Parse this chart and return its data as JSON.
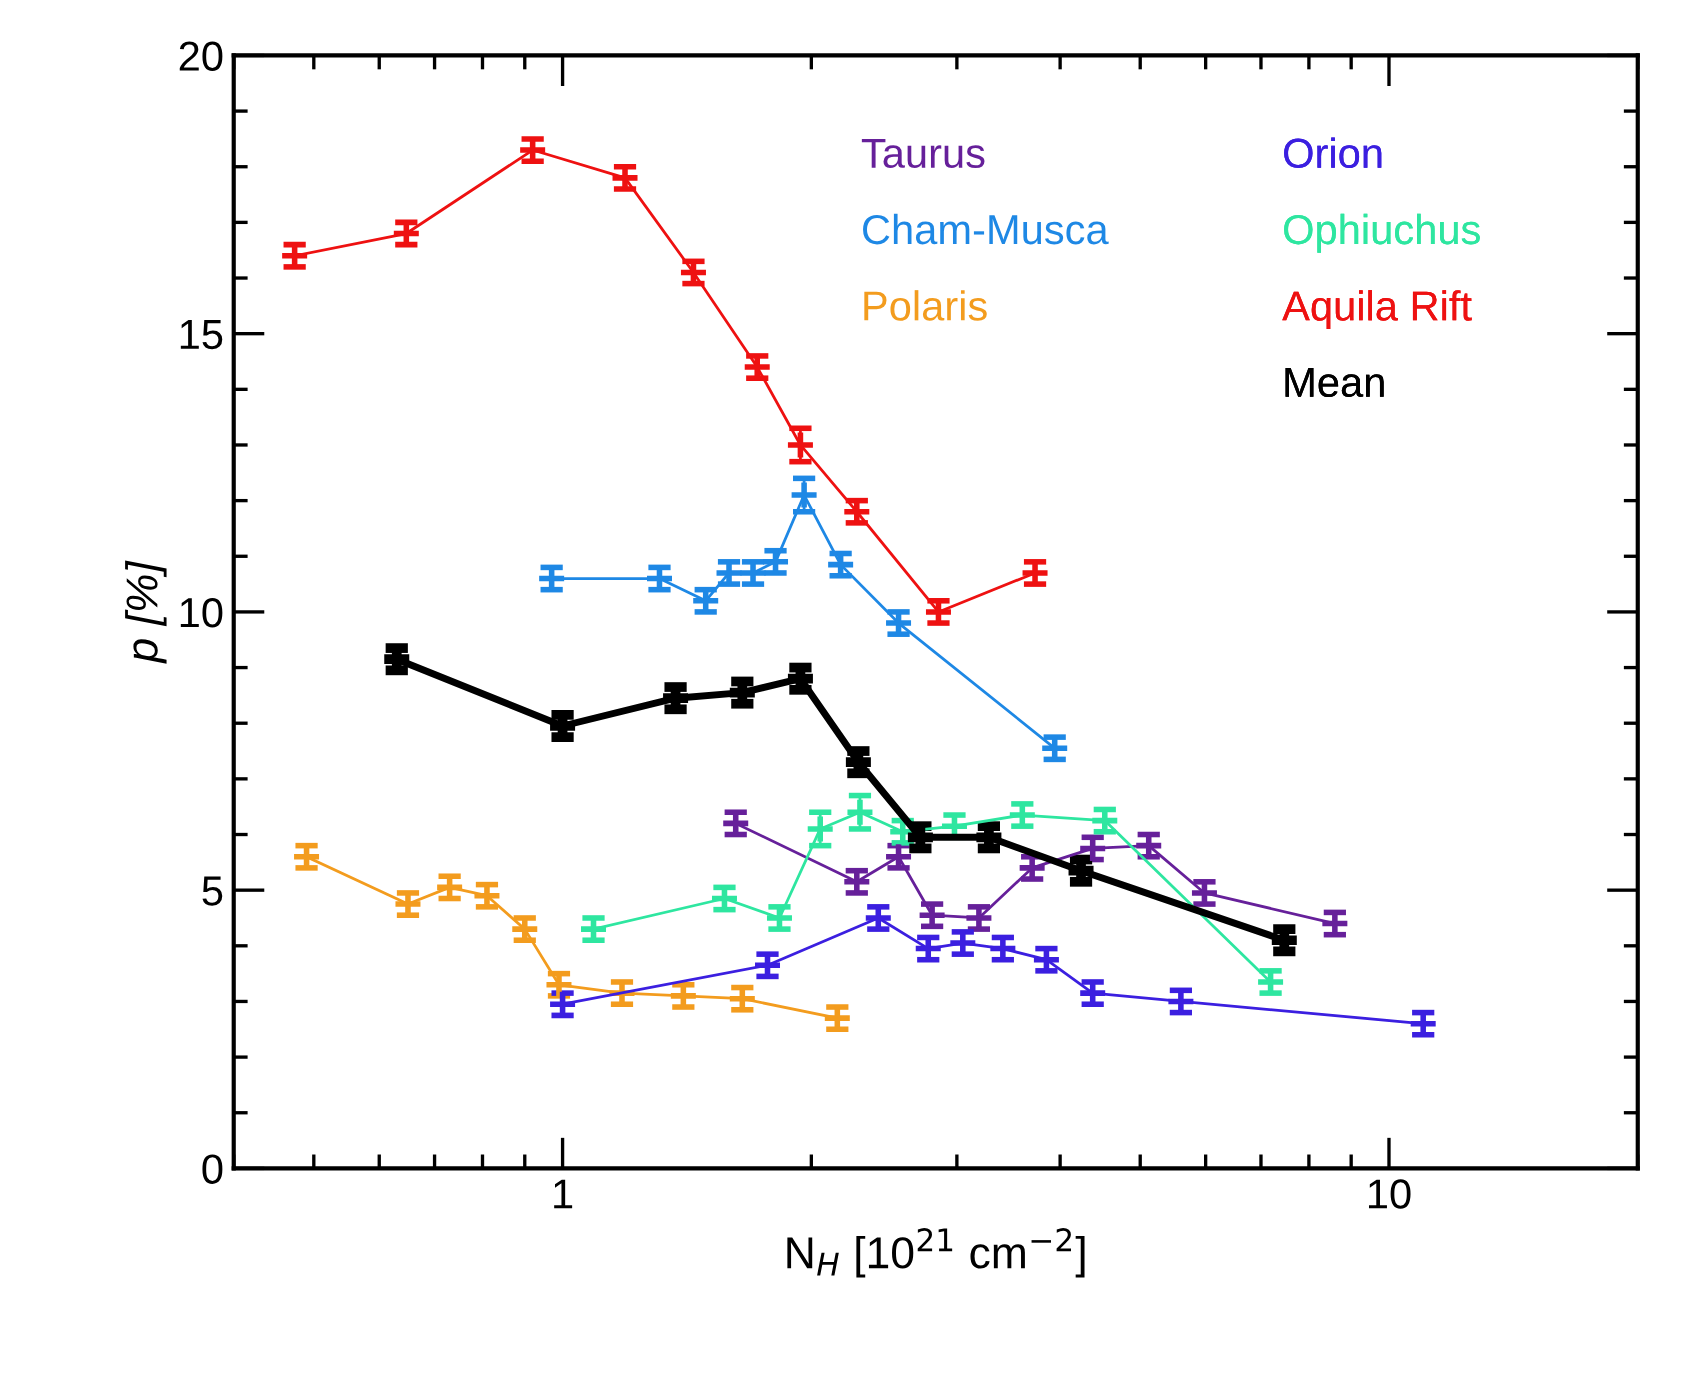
{
  "chart_data": {
    "type": "line",
    "xlabel": "N$_{H}$ [10$^{21}$ cm$^{−2}$]",
    "ylabel": "p [%]",
    "log": "x",
    "xlim": [
      0.4,
      20
    ],
    "ylim": [
      0,
      20
    ],
    "xticks": [
      {
        "value": 0.4,
        "label": null
      },
      {
        "value": 0.5,
        "label": null
      },
      {
        "value": 0.6,
        "label": null
      },
      {
        "value": 0.7,
        "label": null
      },
      {
        "value": 0.8,
        "label": null
      },
      {
        "value": 0.9,
        "label": null
      },
      1,
      {
        "value": 2,
        "label": null
      },
      {
        "value": 3,
        "label": null
      },
      {
        "value": 4,
        "label": null
      },
      {
        "value": 5,
        "label": null
      },
      {
        "value": 6,
        "label": null
      },
      {
        "value": 7,
        "label": null
      },
      {
        "value": 8,
        "label": null
      },
      {
        "value": 9,
        "label": null
      },
      10,
      {
        "value": 20,
        "label": null
      }
    ],
    "yticks": [
      0,
      {
        "value": 1,
        "label": null
      },
      {
        "value": 2,
        "label": null
      },
      {
        "value": 3,
        "label": null
      },
      {
        "value": 4,
        "label": null
      },
      5,
      {
        "value": 6,
        "label": null
      },
      {
        "value": 7,
        "label": null
      },
      {
        "value": 8,
        "label": null
      },
      {
        "value": 9,
        "label": null
      },
      10,
      {
        "value": 11,
        "label": null
      },
      {
        "value": 12,
        "label": null
      },
      {
        "value": 13,
        "label": null
      },
      {
        "value": 14,
        "label": null
      },
      15,
      {
        "value": 16,
        "label": null
      },
      {
        "value": 17,
        "label": null
      },
      {
        "value": 18,
        "label": null
      },
      {
        "value": 19,
        "label": null
      },
      20
    ],
    "grid": false,
    "legend": "top right",
    "marker": "cross",
    "line_style": "solid",
    "series": [
      {
        "name": "Taurus",
        "color": "#66209a",
        "x": [
          1.62,
          2.27,
          2.55,
          2.8,
          3.19,
          3.7,
          4.38,
          5.12,
          5.98,
          8.6
        ],
        "values": [
          6.2,
          5.15,
          5.6,
          4.55,
          4.5,
          5.4,
          5.75,
          5.8,
          4.95,
          4.4
        ],
        "errors": [
          0.2,
          0.2,
          0.2,
          0.2,
          0.2,
          0.2,
          0.2,
          0.2,
          0.2,
          0.2
        ]
      },
      {
        "name": "Cham-Musca",
        "color": "#1e88e5",
        "x": [
          0.97,
          1.31,
          1.49,
          1.59,
          1.7,
          1.81,
          1.96,
          2.17,
          2.55,
          3.94
        ],
        "values": [
          10.6,
          10.6,
          10.2,
          10.7,
          10.7,
          10.9,
          12.1,
          10.85,
          9.8,
          7.55
        ],
        "errors": [
          0.2,
          0.2,
          0.2,
          0.2,
          0.2,
          0.2,
          0.3,
          0.2,
          0.2,
          0.2
        ]
      },
      {
        "name": "Polaris",
        "color": "#f39c1e",
        "x": [
          0.49,
          0.65,
          0.73,
          0.81,
          0.9,
          0.99,
          1.18,
          1.4,
          1.65,
          2.15
        ],
        "values": [
          5.6,
          4.75,
          5.05,
          4.9,
          4.3,
          3.3,
          3.15,
          3.1,
          3.05,
          2.7
        ],
        "errors": [
          0.2,
          0.2,
          0.2,
          0.2,
          0.2,
          0.2,
          0.2,
          0.2,
          0.2,
          0.2
        ]
      },
      {
        "name": "Orion",
        "color": "#3b1fe0",
        "x": [
          1.0,
          1.77,
          2.41,
          2.77,
          3.05,
          3.41,
          3.85,
          4.38,
          5.6,
          11.0
        ],
        "values": [
          2.95,
          3.65,
          4.5,
          3.95,
          4.05,
          3.95,
          3.75,
          3.15,
          3.0,
          2.6
        ],
        "errors": [
          0.2,
          0.2,
          0.2,
          0.2,
          0.2,
          0.2,
          0.2,
          0.2,
          0.2,
          0.2
        ]
      },
      {
        "name": "Ophiuchus",
        "color": "#2ee6a0",
        "x": [
          1.09,
          1.57,
          1.83,
          2.05,
          2.29,
          2.58,
          2.98,
          3.6,
          4.53,
          7.19
        ],
        "values": [
          4.3,
          4.85,
          4.5,
          6.1,
          6.4,
          6.05,
          6.15,
          6.35,
          6.25,
          3.35
        ],
        "errors": [
          0.2,
          0.2,
          0.2,
          0.3,
          0.3,
          0.2,
          0.2,
          0.2,
          0.2,
          0.2
        ]
      },
      {
        "name": "Aquila Rift",
        "color": "#ee1111",
        "x": [
          0.474,
          0.647,
          0.92,
          1.19,
          1.44,
          1.72,
          1.94,
          2.27,
          2.85,
          3.73
        ],
        "values": [
          16.4,
          16.8,
          18.3,
          17.8,
          16.1,
          14.4,
          13.0,
          11.8,
          10.0,
          10.7
        ],
        "errors": [
          0.2,
          0.2,
          0.2,
          0.2,
          0.2,
          0.2,
          0.3,
          0.2,
          0.2,
          0.2
        ]
      },
      {
        "name": "Mean",
        "color": "#000000",
        "x": [
          0.63,
          1.0,
          1.37,
          1.65,
          1.94,
          2.28,
          2.71,
          3.28,
          4.24,
          7.47
        ],
        "values": [
          9.15,
          7.95,
          8.45,
          8.55,
          8.8,
          7.3,
          5.95,
          5.95,
          5.35,
          4.1
        ],
        "errors": [
          0.2,
          0.2,
          0.2,
          0.2,
          0.2,
          0.2,
          0.2,
          0.2,
          0.2,
          0.2
        ]
      }
    ]
  }
}
